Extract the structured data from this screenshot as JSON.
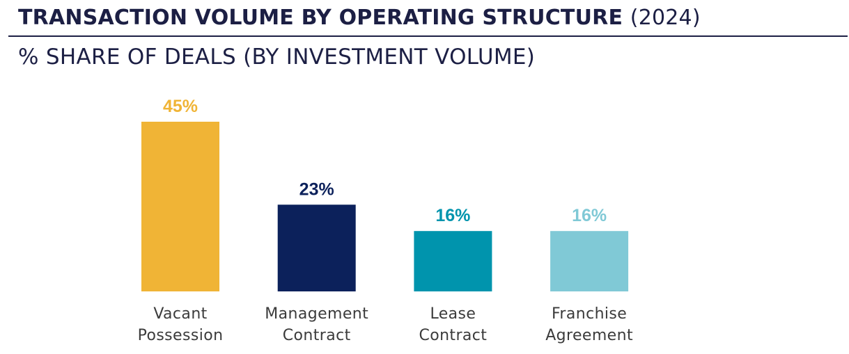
{
  "header": {
    "title": "TRANSACTION VOLUME BY OPERATING STRUCTURE",
    "title_year": "(2024)",
    "subtitle": "% SHARE OF DEALS (BY INVESTMENT VOLUME)"
  },
  "chart_data": {
    "type": "bar",
    "title": "TRANSACTION VOLUME BY OPERATING STRUCTURE (2024)",
    "subtitle": "% SHARE OF DEALS (BY INVESTMENT VOLUME)",
    "categories": [
      [
        "Vacant",
        "Possession"
      ],
      [
        "Management",
        "Contract"
      ],
      [
        "Lease",
        "Contract"
      ],
      [
        "Franchise",
        "Agreement"
      ]
    ],
    "values": [
      45,
      23,
      16,
      16
    ],
    "value_labels": [
      "45%",
      "23%",
      "16%",
      "16%"
    ],
    "colors": [
      "#f0b436",
      "#0c215b",
      "#0094ad",
      "#80c9d6"
    ],
    "xlabel": "",
    "ylabel": "",
    "ylim": [
      0,
      45
    ],
    "grid": false,
    "legend": "none"
  }
}
